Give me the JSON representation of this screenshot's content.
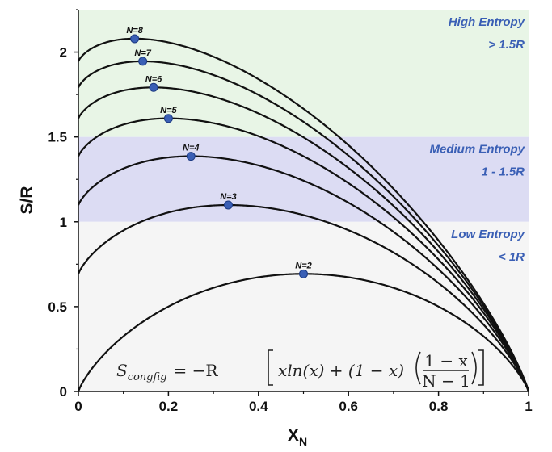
{
  "chart_data": {
    "type": "line",
    "title": "",
    "xlabel_main": "X",
    "xlabel_sub": "N",
    "ylabel": "S/R",
    "xlim": [
      0,
      1
    ],
    "ylim": [
      0,
      2.25
    ],
    "x_ticks": [
      "0",
      "0.2",
      "0.4",
      "0.6",
      "0.8",
      "1"
    ],
    "y_ticks": [
      "0",
      "0.5",
      "1",
      "1.5",
      "2"
    ],
    "x_tick_values": [
      0,
      0.2,
      0.4,
      0.6,
      0.8,
      1
    ],
    "y_tick_values": [
      0,
      0.5,
      1,
      1.5,
      2
    ],
    "grid": false,
    "curve_color": "#111111",
    "marker_color": "#3a5fb5",
    "zones": [
      {
        "from": 1.5,
        "to": 2.25,
        "color": "#e8f5e6",
        "label_line1": "High Entropy",
        "label_line2": "> 1.5R"
      },
      {
        "from": 1.0,
        "to": 1.5,
        "color": "#dcdcf3",
        "label_line1": "Medium Entropy",
        "label_line2": "1 - 1.5R"
      },
      {
        "from": 0.0,
        "to": 1.0,
        "color": "#f5f5f5",
        "label_line1": "Low Entropy",
        "label_line2": "< 1R"
      }
    ],
    "zone_text_color": "#3a5fb5",
    "series": [
      {
        "N": 2,
        "label": "N=2",
        "max_x": 0.5,
        "max_y": 0.693
      },
      {
        "N": 3,
        "label": "N=3",
        "max_x": 0.333,
        "max_y": 1.099
      },
      {
        "N": 4,
        "label": "N=4",
        "max_x": 0.25,
        "max_y": 1.386
      },
      {
        "N": 5,
        "label": "N=5",
        "max_x": 0.2,
        "max_y": 1.609
      },
      {
        "N": 6,
        "label": "N=6",
        "max_x": 0.167,
        "max_y": 1.792
      },
      {
        "N": 7,
        "label": "N=7",
        "max_x": 0.143,
        "max_y": 1.946
      },
      {
        "N": 8,
        "label": "N=8",
        "max_x": 0.125,
        "max_y": 2.079
      }
    ],
    "formula": {
      "lhs": "S",
      "lhs_sub": "congfig",
      "eq": "= −R",
      "body": "xln(x) + (1 − x)",
      "frac_num": "1 − x",
      "frac_den": "N − 1"
    }
  }
}
